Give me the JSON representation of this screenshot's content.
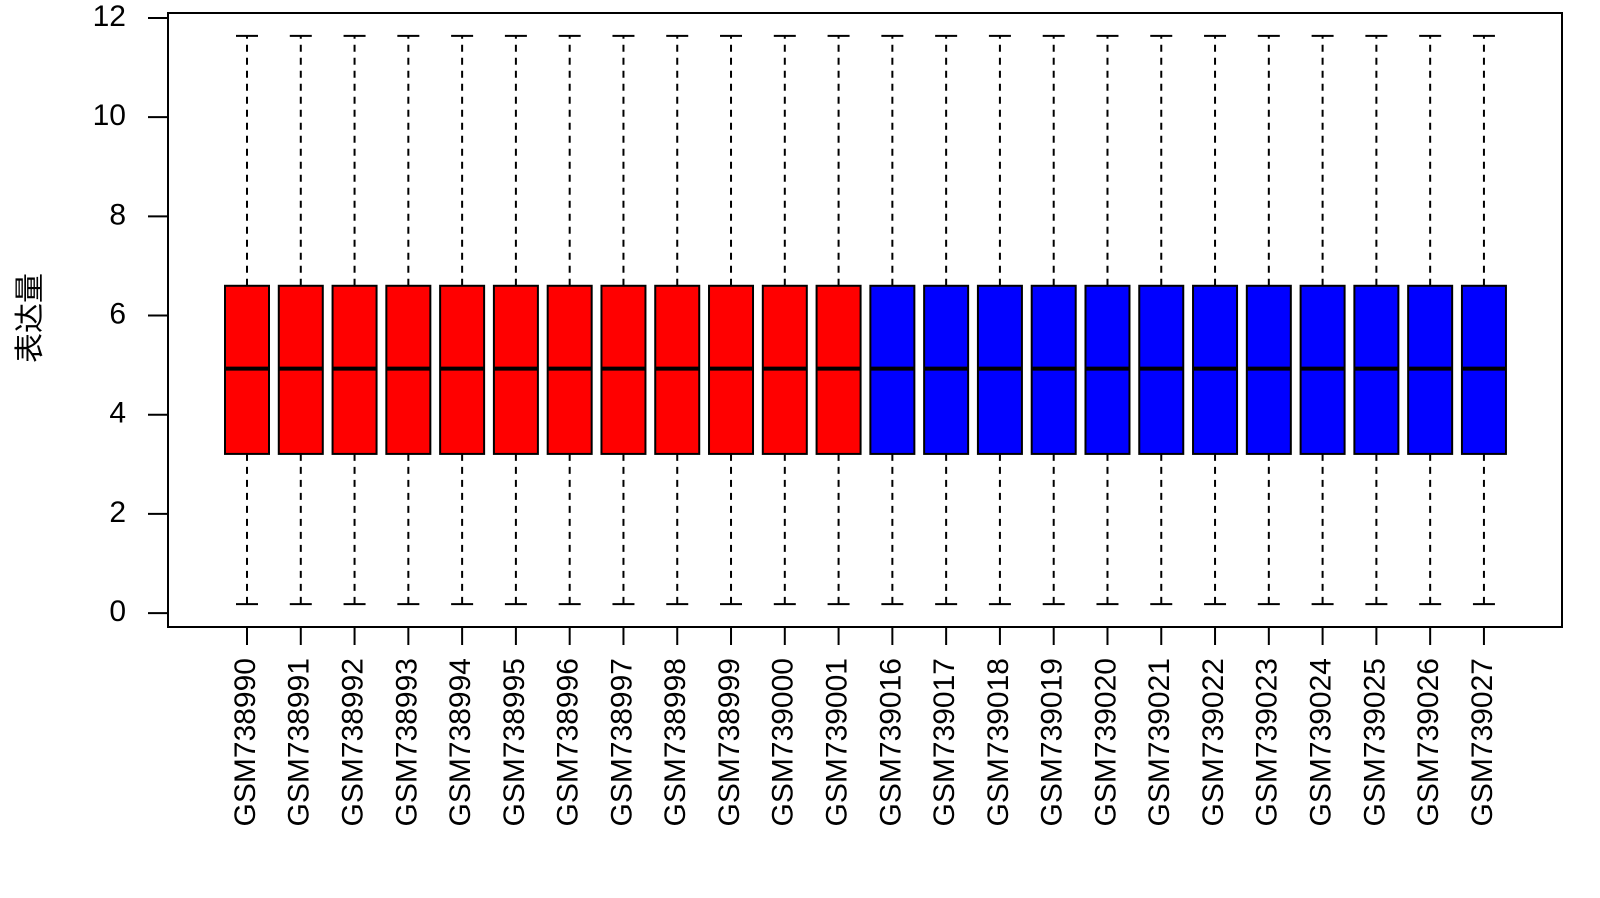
{
  "chart_data": {
    "type": "boxplot",
    "y_label": "表达量",
    "categories": [
      "GSM738990",
      "GSM738991",
      "GSM738992",
      "GSM738993",
      "GSM738994",
      "GSM738995",
      "GSM738996",
      "GSM738997",
      "GSM738998",
      "GSM738999",
      "GSM739000",
      "GSM739001",
      "GSM739016",
      "GSM739017",
      "GSM739018",
      "GSM739019",
      "GSM739020",
      "GSM739021",
      "GSM739022",
      "GSM739023",
      "GSM739024",
      "GSM739025",
      "GSM739026",
      "GSM739027"
    ],
    "min": [
      0.18,
      0.18,
      0.18,
      0.18,
      0.18,
      0.18,
      0.18,
      0.18,
      0.18,
      0.18,
      0.18,
      0.18,
      0.18,
      0.18,
      0.18,
      0.18,
      0.18,
      0.18,
      0.18,
      0.18,
      0.18,
      0.18,
      0.18,
      0.18
    ],
    "q1": [
      3.21,
      3.21,
      3.21,
      3.21,
      3.21,
      3.21,
      3.21,
      3.21,
      3.21,
      3.21,
      3.21,
      3.21,
      3.21,
      3.21,
      3.21,
      3.21,
      3.21,
      3.21,
      3.21,
      3.21,
      3.21,
      3.21,
      3.21,
      3.21
    ],
    "median": [
      4.93,
      4.93,
      4.93,
      4.93,
      4.93,
      4.93,
      4.93,
      4.93,
      4.93,
      4.93,
      4.93,
      4.93,
      4.93,
      4.93,
      4.93,
      4.93,
      4.93,
      4.93,
      4.93,
      4.93,
      4.93,
      4.93,
      4.93,
      4.93
    ],
    "q3": [
      6.6,
      6.6,
      6.6,
      6.6,
      6.6,
      6.6,
      6.6,
      6.6,
      6.6,
      6.6,
      6.6,
      6.6,
      6.6,
      6.6,
      6.6,
      6.6,
      6.6,
      6.6,
      6.6,
      6.6,
      6.6,
      6.6,
      6.6,
      6.6
    ],
    "max": [
      11.64,
      11.64,
      11.64,
      11.64,
      11.64,
      11.64,
      11.64,
      11.64,
      11.64,
      11.64,
      11.64,
      11.64,
      11.64,
      11.64,
      11.64,
      11.64,
      11.64,
      11.64,
      11.64,
      11.64,
      11.64,
      11.64,
      11.64,
      11.64
    ],
    "colors": [
      "#ff0000",
      "#ff0000",
      "#ff0000",
      "#ff0000",
      "#ff0000",
      "#ff0000",
      "#ff0000",
      "#ff0000",
      "#ff0000",
      "#ff0000",
      "#ff0000",
      "#ff0000",
      "#0000ff",
      "#0000ff",
      "#0000ff",
      "#0000ff",
      "#0000ff",
      "#0000ff",
      "#0000ff",
      "#0000ff",
      "#0000ff",
      "#0000ff",
      "#0000ff",
      "#0000ff"
    ],
    "ylim": [
      -0.28,
      12.1
    ],
    "yticks": [
      0,
      2,
      4,
      6,
      8,
      10,
      12
    ]
  }
}
